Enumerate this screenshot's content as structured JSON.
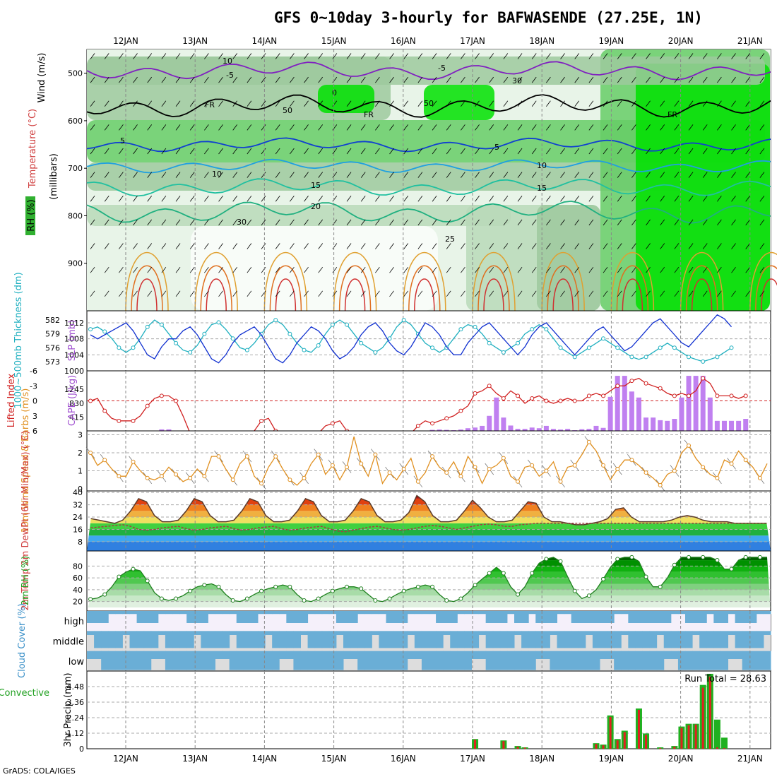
{
  "title": "GFS 0~10day 3-hourly for BAFWASENDE (27.25E, 1N)",
  "footer": "GrADS: COLA/IGES",
  "colors": {
    "rh_light": "#e8f4e8",
    "rh_mid": "#9ec99e",
    "rh_green": "#66cc66",
    "rh_bright": "#00e000",
    "cloud_blue": "#6aaed6",
    "cloud_light": "#dddddd",
    "cape_bar": "#c080f0",
    "lifted_line": "#d02020",
    "slp_line": "#1030d0",
    "thickness_line": "#20b0c0",
    "wind_line": "#e09020",
    "temp_line": "#5a3a2a",
    "rh2m_line": "#208020",
    "rain_bar": "#20b020",
    "conv_bar": "#e02020"
  },
  "chart_data": [
    {
      "panel": "upper-air",
      "type": "heatmap",
      "x_dates": [
        "12JAN",
        "13JAN",
        "14JAN",
        "15JAN",
        "16JAN",
        "17JAN",
        "18JAN",
        "19JAN",
        "20JAN",
        "21JAN"
      ],
      "ylabel": "(millibars)",
      "yticks": [
        500,
        600,
        700,
        800,
        900
      ],
      "ylim": [
        1000,
        450
      ],
      "left_labels": {
        "wind": "Wind (m/s)",
        "temperature": "Temperature (°C)",
        "rh": "RH (%)"
      },
      "contour_labels": [
        "-5",
        "-5",
        "FR",
        "FR",
        "FR",
        "5",
        "5",
        "10",
        "10",
        "15",
        "15",
        "20",
        "25",
        "10",
        "30",
        "50",
        "50",
        "30",
        "0"
      ]
    },
    {
      "panel": "slp-thickness",
      "type": "line",
      "label_left": "1000~500mb Thickness (dm)",
      "label_right": "SLP (mb)",
      "yticks_thickness": [
        573,
        576,
        579,
        582
      ],
      "yticks_slp": [
        1000,
        1004,
        1008,
        1012
      ],
      "slp": [
        1009,
        1008,
        1009,
        1010,
        1011,
        1012,
        1010,
        1007,
        1004,
        1003,
        1006,
        1008,
        1008,
        1010,
        1011,
        1009,
        1006,
        1003,
        1002,
        1004,
        1007,
        1009,
        1010,
        1011,
        1009,
        1006,
        1003,
        1002,
        1004,
        1007,
        1009,
        1011,
        1010,
        1008,
        1005,
        1003,
        1004,
        1006,
        1009,
        1011,
        1012,
        1010,
        1007,
        1005,
        1004,
        1006,
        1009,
        1012,
        1011,
        1009,
        1006,
        1004,
        1004,
        1007,
        1009,
        1011,
        1012,
        1010,
        1008,
        1006,
        1004,
        1006,
        1009,
        1011,
        1012,
        1010,
        1008,
        1006,
        1004,
        1006,
        1008,
        1010,
        1011,
        1009,
        1007,
        1005,
        1006,
        1008,
        1010,
        1012,
        1013,
        1011,
        1009,
        1007,
        1006,
        1008,
        1010,
        1012,
        1014,
        1013,
        1011
      ],
      "thickness": [
        580,
        580.5,
        579.5,
        578,
        576,
        575,
        576,
        578,
        580.5,
        582,
        581,
        579,
        577,
        575.5,
        575,
        576.5,
        579,
        581,
        581.5,
        580,
        578,
        576,
        575.5,
        577,
        579,
        581,
        582,
        581,
        579,
        577,
        575.5,
        575,
        576.5,
        579,
        581,
        582,
        581,
        579,
        577,
        576,
        575,
        576,
        578,
        580.5,
        582,
        581,
        579,
        577,
        576,
        575,
        576,
        578,
        580,
        581,
        580.5,
        579,
        577,
        576,
        575,
        576,
        577,
        579,
        580,
        581,
        580,
        578,
        576,
        575,
        574,
        575,
        576,
        577,
        578,
        577,
        576,
        575,
        574,
        573.5,
        574,
        575,
        576,
        577,
        576,
        575,
        574,
        573.5,
        573,
        573.5,
        574,
        575,
        576
      ]
    },
    {
      "panel": "cape-lifted",
      "type": "bar",
      "label_left": "Lifted Index",
      "label_right": "CAPE (J/kg)",
      "yticks_li": [
        6,
        3,
        0,
        -3,
        -6
      ],
      "yticks_cape": [
        415,
        830,
        1245
      ],
      "lifted_index": [
        0,
        -0.5,
        2,
        3.5,
        4,
        4,
        4,
        3,
        1,
        -0.5,
        -1,
        -1,
        0,
        3,
        6.5,
        7,
        7,
        7,
        7,
        7,
        7,
        7,
        7,
        6,
        4,
        3.5,
        6,
        7,
        7,
        7,
        7,
        7,
        6.5,
        5,
        4.5,
        4,
        6,
        7,
        7,
        7,
        7,
        7,
        7,
        7,
        7,
        7,
        5,
        4,
        4.5,
        4,
        3.5,
        3,
        2,
        1,
        -1.5,
        -2,
        -3,
        -1.5,
        -0.5,
        -2,
        -1,
        0.5,
        -0.5,
        -1,
        0,
        0.5,
        0,
        -0.5,
        0,
        0,
        -1,
        -1.5,
        -1,
        -2,
        -3,
        -3,
        -4,
        -4.5,
        -3.5,
        -3,
        -2.5,
        -1.5,
        -1,
        -1.5,
        -1,
        -2,
        -4.5,
        -3.5,
        -1,
        -1,
        -1,
        -0.5,
        -1
      ],
      "cape": [
        0,
        0,
        0,
        0,
        0,
        0,
        0,
        0,
        0,
        0,
        45,
        45,
        0,
        0,
        0,
        0,
        0,
        0,
        0,
        0,
        0,
        0,
        0,
        0,
        0,
        0,
        0,
        0,
        0,
        0,
        0,
        0,
        0,
        0,
        0,
        0,
        0,
        0,
        0,
        0,
        0,
        0,
        0,
        0,
        0,
        0,
        0,
        0,
        30,
        40,
        30,
        20,
        40,
        80,
        100,
        150,
        450,
        1000,
        400,
        160,
        60,
        60,
        100,
        80,
        150,
        60,
        40,
        60,
        20,
        50,
        60,
        150,
        90,
        1020,
        1650,
        1650,
        1180,
        1000,
        400,
        400,
        320,
        300,
        360,
        1000,
        1650,
        1650,
        1650,
        1000,
        300,
        300,
        300,
        300,
        360
      ]
    },
    {
      "panel": "wind-10m",
      "type": "line",
      "label_left": "10m Wind Speed & Barbs (m/s)",
      "yticks": [
        0,
        1,
        2,
        3
      ],
      "values": [
        2,
        1.3,
        1.6,
        1.1,
        0.7,
        0.7,
        1.5,
        1,
        0.6,
        0.5,
        0.7,
        1.2,
        0.8,
        0.4,
        0.6,
        1.1,
        0.7,
        1.8,
        1.8,
        1.1,
        0.5,
        1.4,
        1.8,
        0.7,
        0.3,
        1.2,
        1.8,
        1.1,
        0.5,
        0.2,
        0.6,
        1.4,
        1.9,
        0.8,
        1.3,
        0.5,
        1.2,
        2.9,
        1.4,
        0.7,
        1.9,
        0.3,
        0.9,
        0.5,
        1.1,
        1.7,
        0.4,
        0.9,
        1.8,
        1.2,
        0.9,
        1.5,
        0.7,
        1.8,
        1.2,
        0.3,
        1.1,
        1.3,
        1.7,
        0.7,
        0.4,
        1.2,
        1.3,
        0.7,
        1,
        1.5,
        0.4,
        1.2,
        1.3,
        1.9,
        2.6,
        2.1,
        1.3,
        0.5,
        1.1,
        1.6,
        1.6,
        1.3,
        0.9,
        0.6,
        0.2,
        0.8,
        1,
        2,
        2.4,
        1.7,
        1.2,
        0.8,
        0.6,
        1.6,
        1.4,
        2.1,
        1.6,
        1.2,
        0.6,
        1.4
      ]
    },
    {
      "panel": "temp-2m",
      "type": "area",
      "label_left": "2m Temp 2m DewPt (6hr Min/Max) (°C)",
      "yticks": [
        8,
        16,
        24,
        32,
        40
      ],
      "temp": [
        23,
        22,
        21,
        20,
        22,
        28,
        36,
        34,
        25,
        21,
        21,
        22,
        28,
        36,
        34,
        25,
        21,
        21,
        22,
        28,
        36,
        34,
        25,
        21,
        21,
        22,
        28,
        36,
        34,
        25,
        21,
        21,
        22,
        28,
        36,
        34,
        25,
        21,
        21,
        22,
        27,
        38,
        34,
        25,
        21,
        21,
        22,
        28,
        35,
        30,
        24,
        21,
        21,
        22,
        28,
        34,
        33,
        24,
        21,
        21,
        20,
        19,
        19,
        20,
        21,
        23,
        29,
        30,
        24,
        21,
        21,
        21,
        21,
        22,
        24,
        25,
        24,
        22,
        21,
        21,
        21,
        20,
        20,
        20,
        20,
        20
      ],
      "dewpoint": [
        17,
        17.5,
        18,
        18.5,
        19,
        18,
        16,
        15.5,
        16,
        17,
        17.5,
        18,
        16.5,
        15.5,
        16,
        17,
        17.5,
        18,
        16.5,
        15.5,
        16,
        17,
        17.5,
        18,
        16.5,
        15.5,
        16,
        17,
        17.5,
        18,
        16.5,
        15,
        14.5,
        15.5,
        16.5,
        17.5,
        18,
        17,
        16,
        15.5,
        16,
        17,
        18,
        18.5,
        18,
        17,
        16,
        17,
        18,
        19,
        19.5,
        19,
        18,
        18,
        19,
        19.5,
        20,
        20,
        20,
        20,
        20,
        20,
        20,
        20,
        20,
        20,
        20,
        20,
        20,
        20,
        20,
        20,
        20,
        20,
        20,
        20,
        20,
        20,
        20,
        20,
        20,
        20,
        20,
        20,
        20,
        20
      ]
    },
    {
      "panel": "rh-2m",
      "type": "area",
      "label_left": "2m RH (%)",
      "yticks": [
        20,
        40,
        60,
        80
      ],
      "values": [
        24,
        26,
        32,
        45,
        62,
        70,
        75,
        72,
        55,
        35,
        25,
        22,
        25,
        30,
        38,
        45,
        48,
        50,
        45,
        32,
        22,
        20,
        25,
        32,
        38,
        42,
        45,
        48,
        45,
        32,
        22,
        20,
        25,
        32,
        38,
        42,
        45,
        45,
        42,
        32,
        22,
        20,
        25,
        32,
        38,
        42,
        45,
        48,
        45,
        32,
        22,
        20,
        25,
        35,
        48,
        58,
        68,
        78,
        68,
        45,
        32,
        45,
        68,
        85,
        92,
        95,
        88,
        62,
        38,
        25,
        30,
        40,
        58,
        78,
        92,
        95,
        95,
        88,
        62,
        45,
        45,
        60,
        82,
        95,
        95,
        95,
        95,
        95,
        90,
        75,
        75,
        90,
        95,
        95,
        95,
        95
      ]
    },
    {
      "panel": "cloud-cover",
      "type": "heatmap",
      "label_left": "Cloud Cover (%)",
      "rows": [
        "high",
        "middle",
        "low"
      ]
    },
    {
      "panel": "precip",
      "type": "bar",
      "label_left": "Total / Rain Convective",
      "ylabel": "3hr Precip (mm)",
      "yticks": [
        0,
        1.12,
        2.24,
        3.36,
        4.48
      ],
      "run_total_label": "Run Total = 28.63",
      "x_dates": [
        "12JAN",
        "13JAN",
        "14JAN",
        "15JAN",
        "16JAN",
        "17JAN",
        "18JAN",
        "19JAN",
        "20JAN",
        "21JAN"
      ],
      "bars": [
        {
          "i": 54,
          "total": 0.7,
          "conv": 0.65
        },
        {
          "i": 58,
          "total": 0.6,
          "conv": 0.55
        },
        {
          "i": 60,
          "total": 0.2,
          "conv": 0.15
        },
        {
          "i": 61,
          "total": 0.1,
          "conv": 0.08
        },
        {
          "i": 71,
          "total": 0.4,
          "conv": 0.35
        },
        {
          "i": 72,
          "total": 0.3,
          "conv": 0.25
        },
        {
          "i": 73,
          "total": 2.4,
          "conv": 2.3
        },
        {
          "i": 74,
          "total": 0.7,
          "conv": 0.6
        },
        {
          "i": 75,
          "total": 1.3,
          "conv": 1.2
        },
        {
          "i": 77,
          "total": 2.9,
          "conv": 2.8
        },
        {
          "i": 78,
          "total": 1.1,
          "conv": 1.0
        },
        {
          "i": 80,
          "total": 0.1,
          "conv": 0.05
        },
        {
          "i": 82,
          "total": 0.2,
          "conv": 0.15
        },
        {
          "i": 83,
          "total": 1.6,
          "conv": 1.5
        },
        {
          "i": 84,
          "total": 1.8,
          "conv": 1.7
        },
        {
          "i": 85,
          "total": 1.8,
          "conv": 1.75
        },
        {
          "i": 86,
          "total": 4.6,
          "conv": 4.4
        },
        {
          "i": 87,
          "total": 5.4,
          "conv": 5.2
        },
        {
          "i": 88,
          "total": 2.1,
          "conv": 0.1
        },
        {
          "i": 89,
          "total": 0.8,
          "conv": 0.05
        }
      ]
    }
  ]
}
